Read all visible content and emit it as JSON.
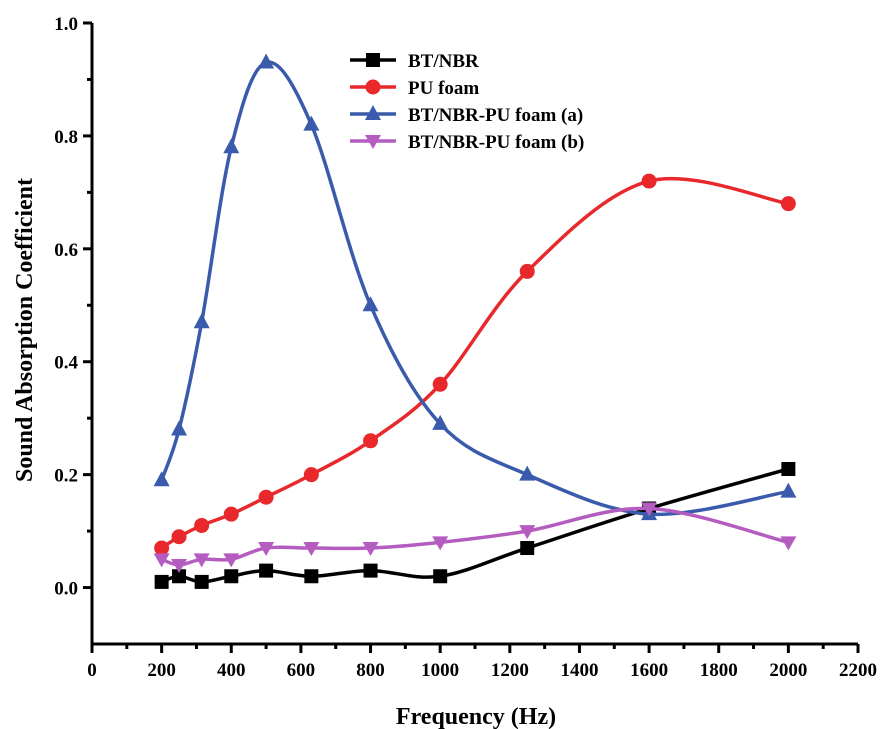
{
  "chart_data": {
    "type": "line",
    "title": "",
    "xlabel": "Frequency (Hz)",
    "ylabel": "Sound Absorption Coefficient",
    "xlim": [
      0,
      2200
    ],
    "ylim": [
      -0.1,
      1.0
    ],
    "x_ticks": [
      0,
      200,
      400,
      600,
      800,
      1000,
      1200,
      1400,
      1600,
      1800,
      2000,
      2200
    ],
    "x_tick_labels": [
      "0",
      "200",
      "400",
      "600",
      "800",
      "1000",
      "1200",
      "1400",
      "1600",
      "1800",
      "2000",
      "2200"
    ],
    "y_ticks": [
      0.0,
      0.2,
      0.4,
      0.6,
      0.8,
      1.0
    ],
    "y_tick_labels": [
      "0.0",
      "0.2",
      "0.4",
      "0.6",
      "0.8",
      "1.0"
    ],
    "grid": false,
    "legend_position": "top-center",
    "series": [
      {
        "name": "BT/NBR",
        "color": "#000000",
        "marker": "square",
        "x": [
          200,
          250,
          315,
          400,
          500,
          630,
          800,
          1000,
          1250,
          1600,
          2000
        ],
        "y": [
          0.01,
          0.02,
          0.01,
          0.02,
          0.03,
          0.02,
          0.03,
          0.02,
          0.07,
          0.14,
          0.21
        ]
      },
      {
        "name": "PU foam",
        "color": "#e8282b",
        "marker": "circle",
        "x": [
          200,
          250,
          315,
          400,
          500,
          630,
          800,
          1000,
          1250,
          1600,
          2000
        ],
        "y": [
          0.07,
          0.09,
          0.11,
          0.13,
          0.16,
          0.2,
          0.26,
          0.36,
          0.56,
          0.72,
          0.68
        ]
      },
      {
        "name": "BT/NBR-PU foam (a)",
        "color": "#3a5bab",
        "marker": "triangle-up",
        "x": [
          200,
          250,
          315,
          400,
          500,
          630,
          800,
          1000,
          1250,
          1600,
          2000
        ],
        "y": [
          0.19,
          0.28,
          0.47,
          0.78,
          0.93,
          0.82,
          0.5,
          0.29,
          0.2,
          0.13,
          0.17
        ]
      },
      {
        "name": "BT/NBR-PU foam (b)",
        "color": "#b45cc0",
        "marker": "triangle-down",
        "x": [
          200,
          250,
          315,
          400,
          500,
          630,
          800,
          1000,
          1250,
          1600,
          2000
        ],
        "y": [
          0.05,
          0.04,
          0.05,
          0.05,
          0.07,
          0.07,
          0.07,
          0.08,
          0.1,
          0.14,
          0.08
        ]
      }
    ]
  }
}
